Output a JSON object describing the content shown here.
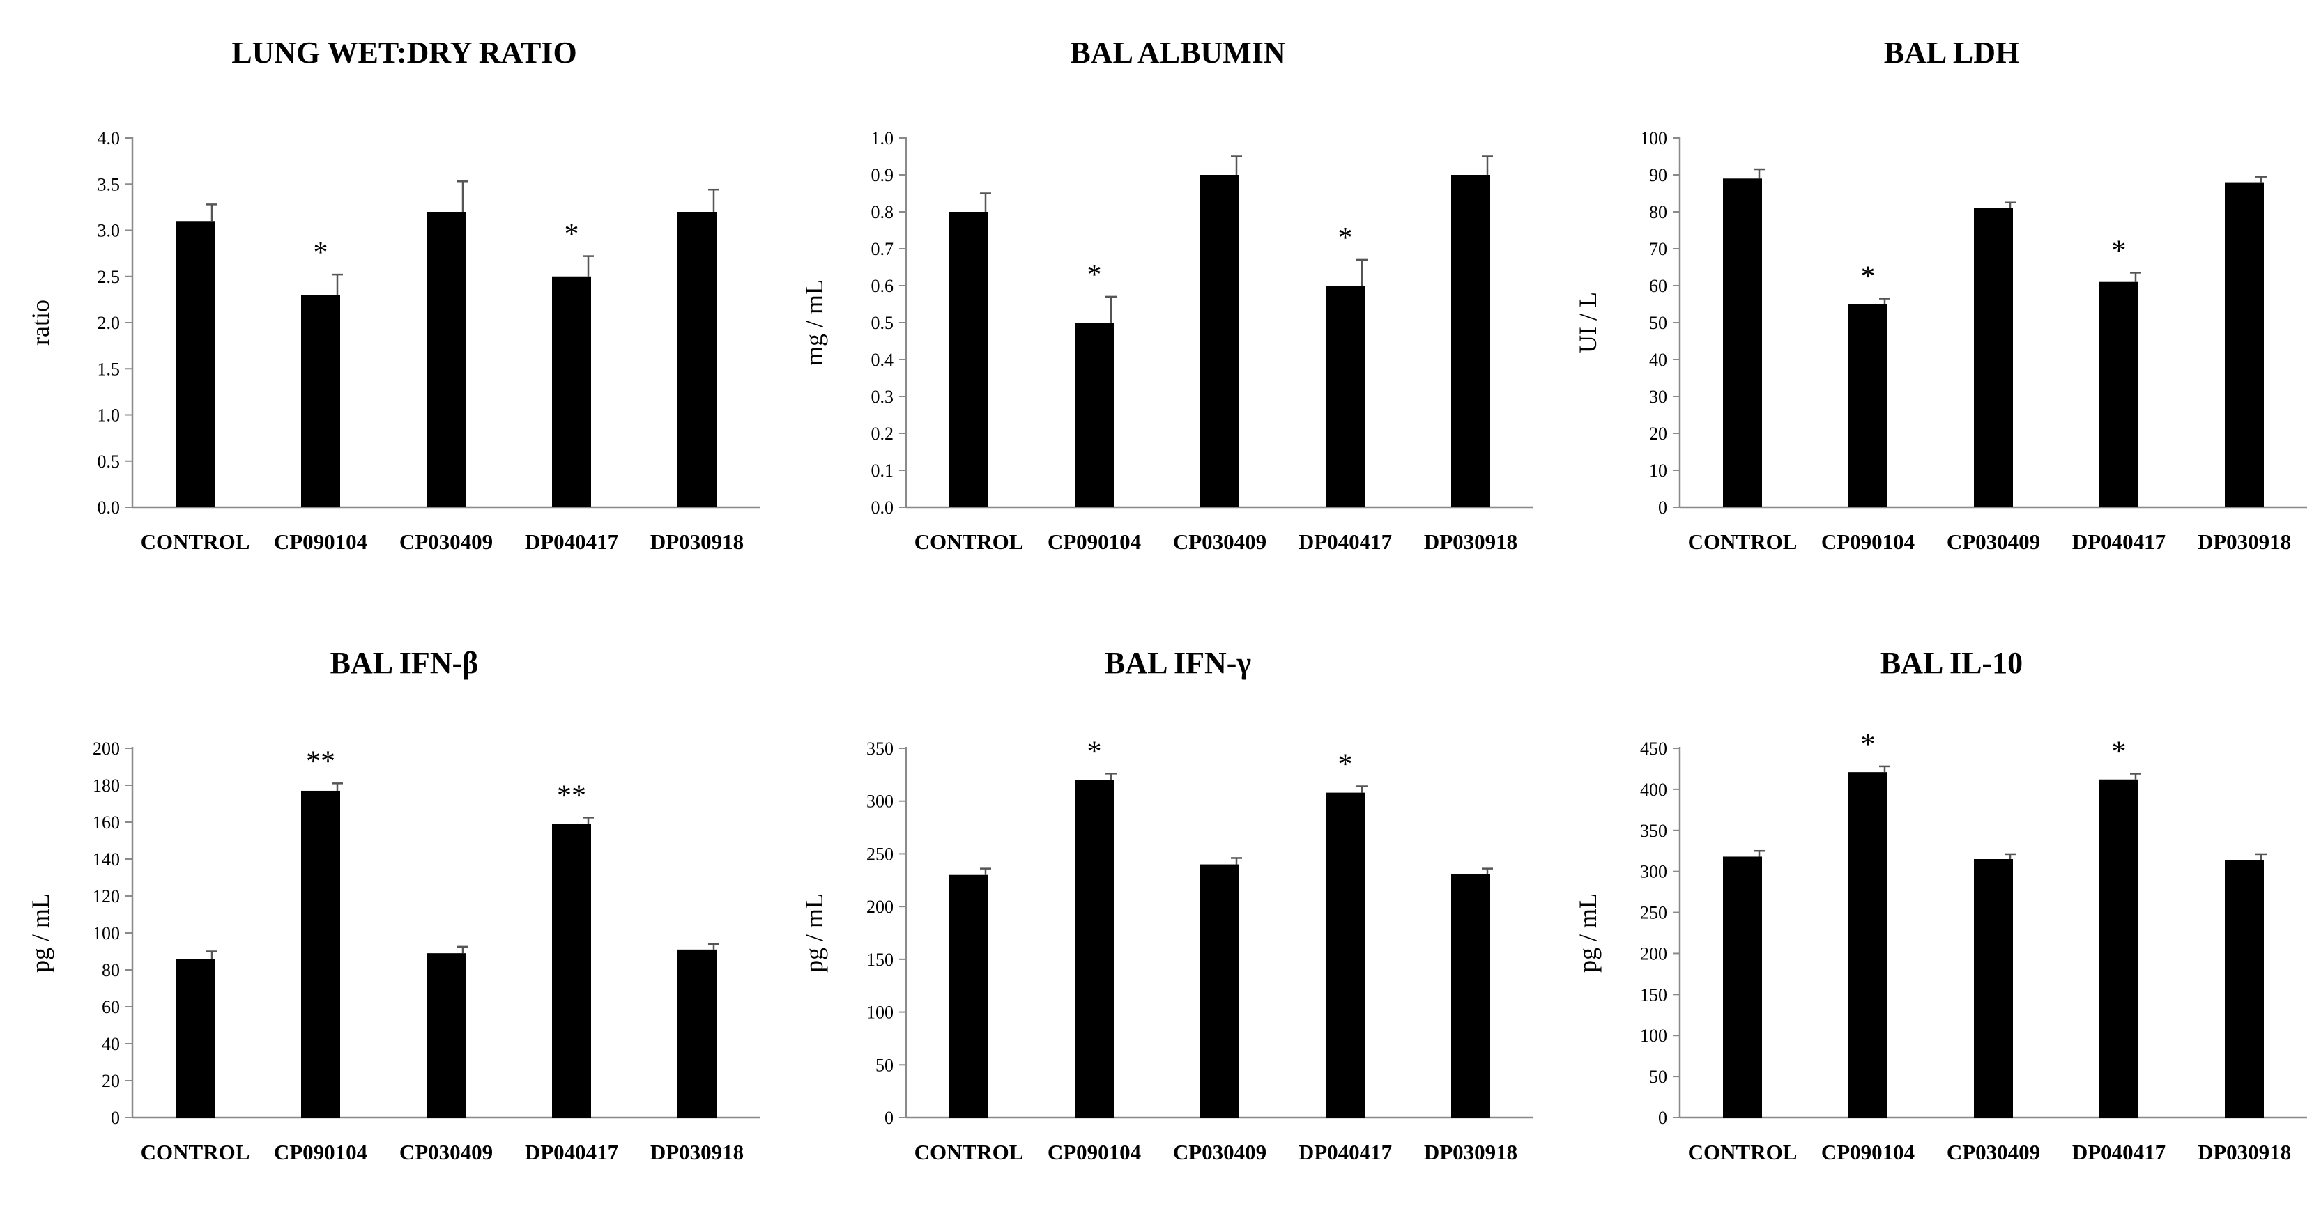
{
  "chart_data": [
    {
      "type": "bar",
      "title": "LUNG WET:DRY RATIO",
      "ylabel": "ratio",
      "ylim": [
        0,
        4.0
      ],
      "ytick_step": 0.5,
      "ytick_decimals": 1,
      "categories": [
        "CONTROL",
        "CP090104",
        "CP030409",
        "DP040417",
        "DP030918"
      ],
      "values": [
        3.1,
        2.3,
        3.2,
        2.5,
        3.2
      ],
      "errors": [
        0.18,
        0.22,
        0.33,
        0.22,
        0.24
      ],
      "significance": [
        "",
        "*",
        "",
        "*",
        ""
      ]
    },
    {
      "type": "bar",
      "title": "BAL ALBUMIN",
      "ylabel": "mg / mL",
      "ylim": [
        0,
        1.0
      ],
      "ytick_step": 0.1,
      "ytick_decimals": 1,
      "categories": [
        "CONTROL",
        "CP090104",
        "CP030409",
        "DP040417",
        "DP030918"
      ],
      "values": [
        0.8,
        0.5,
        0.9,
        0.6,
        0.9
      ],
      "errors": [
        0.05,
        0.07,
        0.05,
        0.07,
        0.05
      ],
      "significance": [
        "",
        "*",
        "",
        "*",
        ""
      ]
    },
    {
      "type": "bar",
      "title": "BAL LDH",
      "ylabel": "UI / L",
      "ylim": [
        0,
        100
      ],
      "ytick_step": 10,
      "ytick_decimals": 0,
      "categories": [
        "CONTROL",
        "CP090104",
        "CP030409",
        "DP040417",
        "DP030918"
      ],
      "values": [
        89,
        55,
        81,
        61,
        88
      ],
      "errors": [
        2.5,
        1.5,
        1.5,
        2.5,
        1.5
      ],
      "significance": [
        "",
        "*",
        "",
        "*",
        ""
      ]
    },
    {
      "type": "bar",
      "title": "BAL IFN-β",
      "ylabel": "pg / mL",
      "ylim": [
        0,
        200
      ],
      "ytick_step": 20,
      "ytick_decimals": 0,
      "categories": [
        "CONTROL",
        "CP090104",
        "CP030409",
        "DP040417",
        "DP030918"
      ],
      "values": [
        86,
        177,
        89,
        159,
        91
      ],
      "errors": [
        4,
        4,
        3.5,
        3.5,
        3
      ],
      "significance": [
        "",
        "**",
        "",
        "**",
        ""
      ]
    },
    {
      "type": "bar",
      "title": "BAL IFN-γ",
      "ylabel": "pg / mL",
      "ylim": [
        0,
        350
      ],
      "ytick_step": 50,
      "ytick_decimals": 0,
      "categories": [
        "CONTROL",
        "CP090104",
        "CP030409",
        "DP040417",
        "DP030918"
      ],
      "values": [
        230,
        320,
        240,
        308,
        231
      ],
      "errors": [
        6,
        6,
        6,
        6,
        5
      ],
      "significance": [
        "",
        "*",
        "",
        "*",
        ""
      ]
    },
    {
      "type": "bar",
      "title": "BAL IL-10",
      "ylabel": "pg / mL",
      "ylim": [
        0,
        450
      ],
      "ytick_step": 50,
      "ytick_decimals": 0,
      "categories": [
        "CONTROL",
        "CP090104",
        "CP030409",
        "DP040417",
        "DP030918"
      ],
      "values": [
        318,
        421,
        315,
        412,
        314
      ],
      "errors": [
        7,
        7,
        6,
        7,
        7
      ],
      "significance": [
        "",
        "*",
        "",
        "*",
        ""
      ]
    }
  ]
}
